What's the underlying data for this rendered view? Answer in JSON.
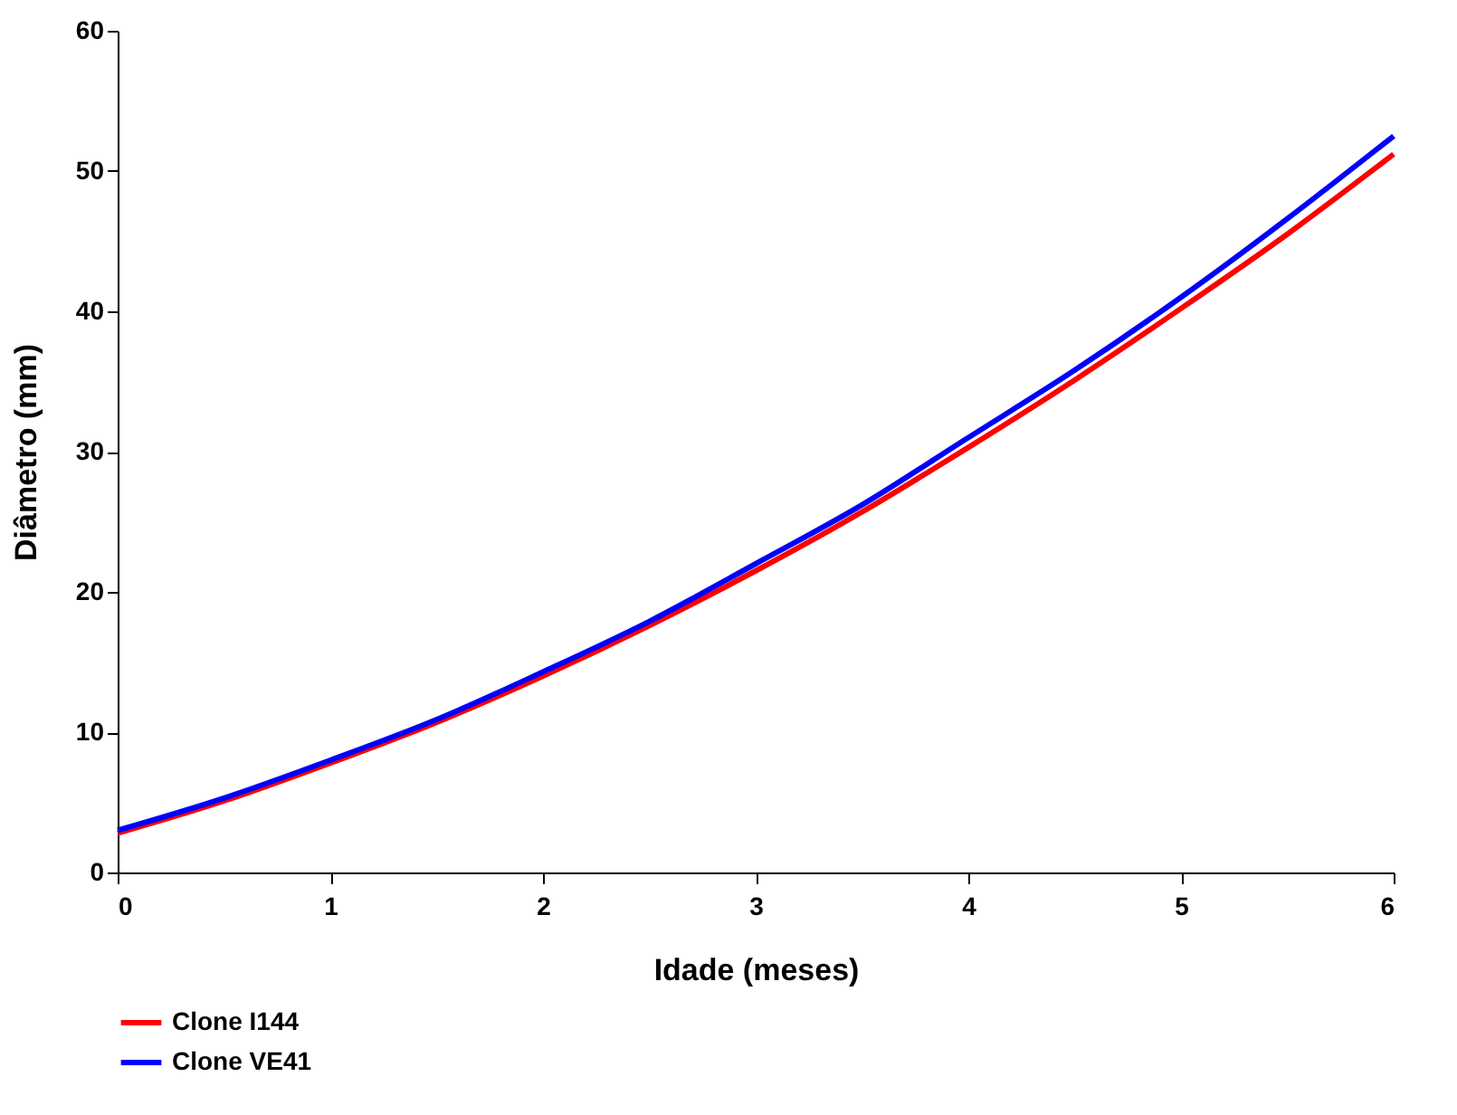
{
  "chart_data": {
    "type": "line",
    "xlabel": "Idade (meses)",
    "ylabel": "Diâmetro (mm)",
    "x": [
      0,
      0.5,
      1,
      1.5,
      2,
      2.5,
      3,
      3.5,
      4,
      4.5,
      5,
      5.5,
      6
    ],
    "series": [
      {
        "name": "Clone I144",
        "color": "#ff0000",
        "values": [
          2.8,
          5.1,
          7.8,
          10.7,
          14.0,
          17.6,
          21.5,
          25.7,
          30.3,
          35.1,
          40.2,
          45.5,
          51.2
        ]
      },
      {
        "name": "Clone VE41",
        "color": "#0000ff",
        "values": [
          3.0,
          5.3,
          8.0,
          10.9,
          14.3,
          17.9,
          22.0,
          26.2,
          31.0,
          35.8,
          41.0,
          46.6,
          52.5
        ]
      }
    ],
    "xlim": [
      0,
      6
    ],
    "xticks": [
      0,
      1,
      2,
      3,
      4,
      5,
      6
    ],
    "ylim": [
      0,
      60
    ],
    "yticks": [
      0,
      10,
      20,
      30,
      40,
      50,
      60
    ],
    "grid": false,
    "legend": "bottom left",
    "marker": "none",
    "line_style": "solid"
  }
}
